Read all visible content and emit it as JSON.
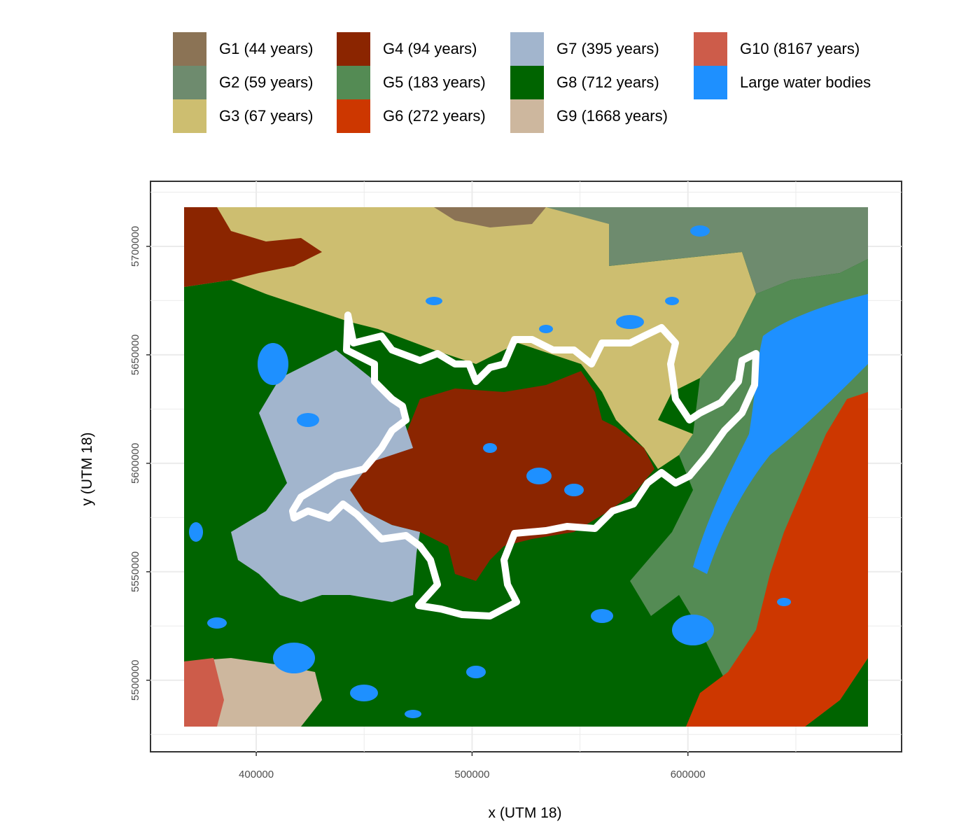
{
  "legend": [
    {
      "label": "G1 (44 years)",
      "color": "#8B7355"
    },
    {
      "label": "G2 (59 years)",
      "color": "#6E8B6E"
    },
    {
      "label": "G3 (67 years)",
      "color": "#CDBE70"
    },
    {
      "label": "G4 (94 years)",
      "color": "#8B2500"
    },
    {
      "label": "G5 (183 years)",
      "color": "#548B54"
    },
    {
      "label": "G6 (272 years)",
      "color": "#CD3700"
    },
    {
      "label": "G7 (395 years)",
      "color": "#A2B5CD"
    },
    {
      "label": "G8 (712 years)",
      "color": "#006400"
    },
    {
      "label": "G9 (1668 years)",
      "color": "#CDB79E"
    },
    {
      "label": "G10 (8167 years)",
      "color": "#CD5C4A"
    },
    {
      "label": "Large water bodies",
      "color": "#1E90FF"
    }
  ],
  "axes": {
    "x_title": "x (UTM 18)",
    "y_title": "y (UTM 18)",
    "x_ticks": [
      400000,
      500000,
      600000
    ],
    "x_tick_labels": [
      "400000",
      "500000",
      "600000"
    ],
    "y_ticks": [
      5500000,
      5550000,
      5600000,
      5650000,
      5700000
    ],
    "y_tick_labels": [
      "5500000",
      "5550000",
      "5600000",
      "5650000",
      "5700000"
    ],
    "x_range": [
      351000,
      699000
    ],
    "y_range": [
      5467000,
      5730000
    ]
  },
  "boundary_color": "#FFFFFF"
}
